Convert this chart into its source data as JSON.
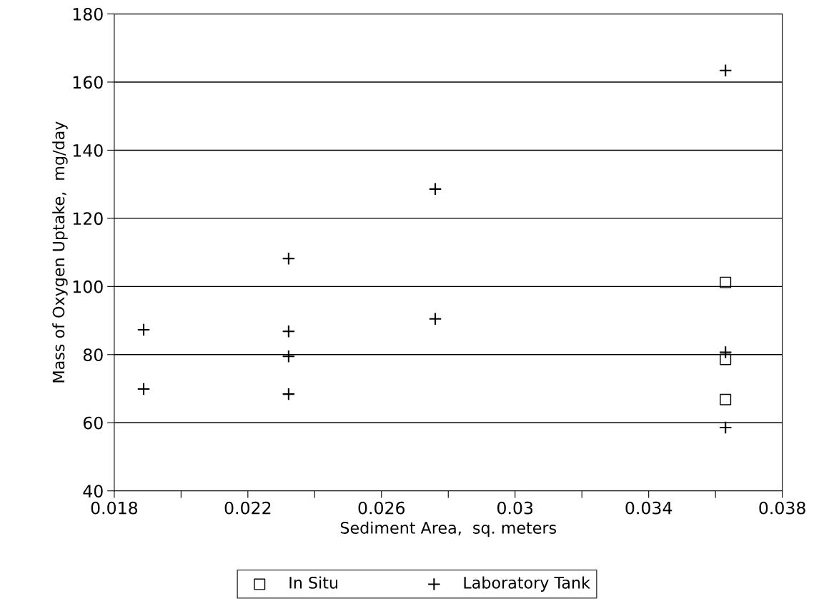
{
  "chart_data": {
    "type": "scatter",
    "xlabel": "Sediment Area,  sq. meters",
    "ylabel": "Mass of Oxygen Uptake,  mg/day",
    "xlim": [
      0.018,
      0.038
    ],
    "ylim": [
      40,
      180
    ],
    "xticks": [
      0.018,
      {
        "value": 0.02,
        "label": null
      },
      0.022,
      {
        "value": 0.024,
        "label": null
      },
      0.026,
      {
        "value": 0.028,
        "label": null
      },
      0.03,
      {
        "value": 0.032,
        "label": null
      },
      0.034,
      {
        "value": 0.036,
        "label": null
      },
      0.038
    ],
    "yticks": [
      40,
      60,
      80,
      100,
      120,
      140,
      160,
      180
    ],
    "grid": "y",
    "legend": "bottom",
    "series": [
      {
        "name": "In Situ",
        "color": "#000000",
        "marker": "square",
        "x": [
          0.0363,
          0.0363,
          0.0363
        ],
        "values": [
          101.2,
          78.6,
          66.8
        ]
      },
      {
        "name": "Laboratory Tank",
        "color": "#000000",
        "marker": "cross",
        "x": [
          0.01888,
          0.01888,
          0.02322,
          0.02322,
          0.02322,
          0.02322,
          0.02761,
          0.02761,
          0.0363,
          0.0363,
          0.0363
        ],
        "values": [
          87.3,
          69.9,
          108.2,
          86.8,
          79.5,
          68.4,
          128.6,
          90.5,
          163.4,
          80.7,
          58.6
        ]
      }
    ]
  }
}
